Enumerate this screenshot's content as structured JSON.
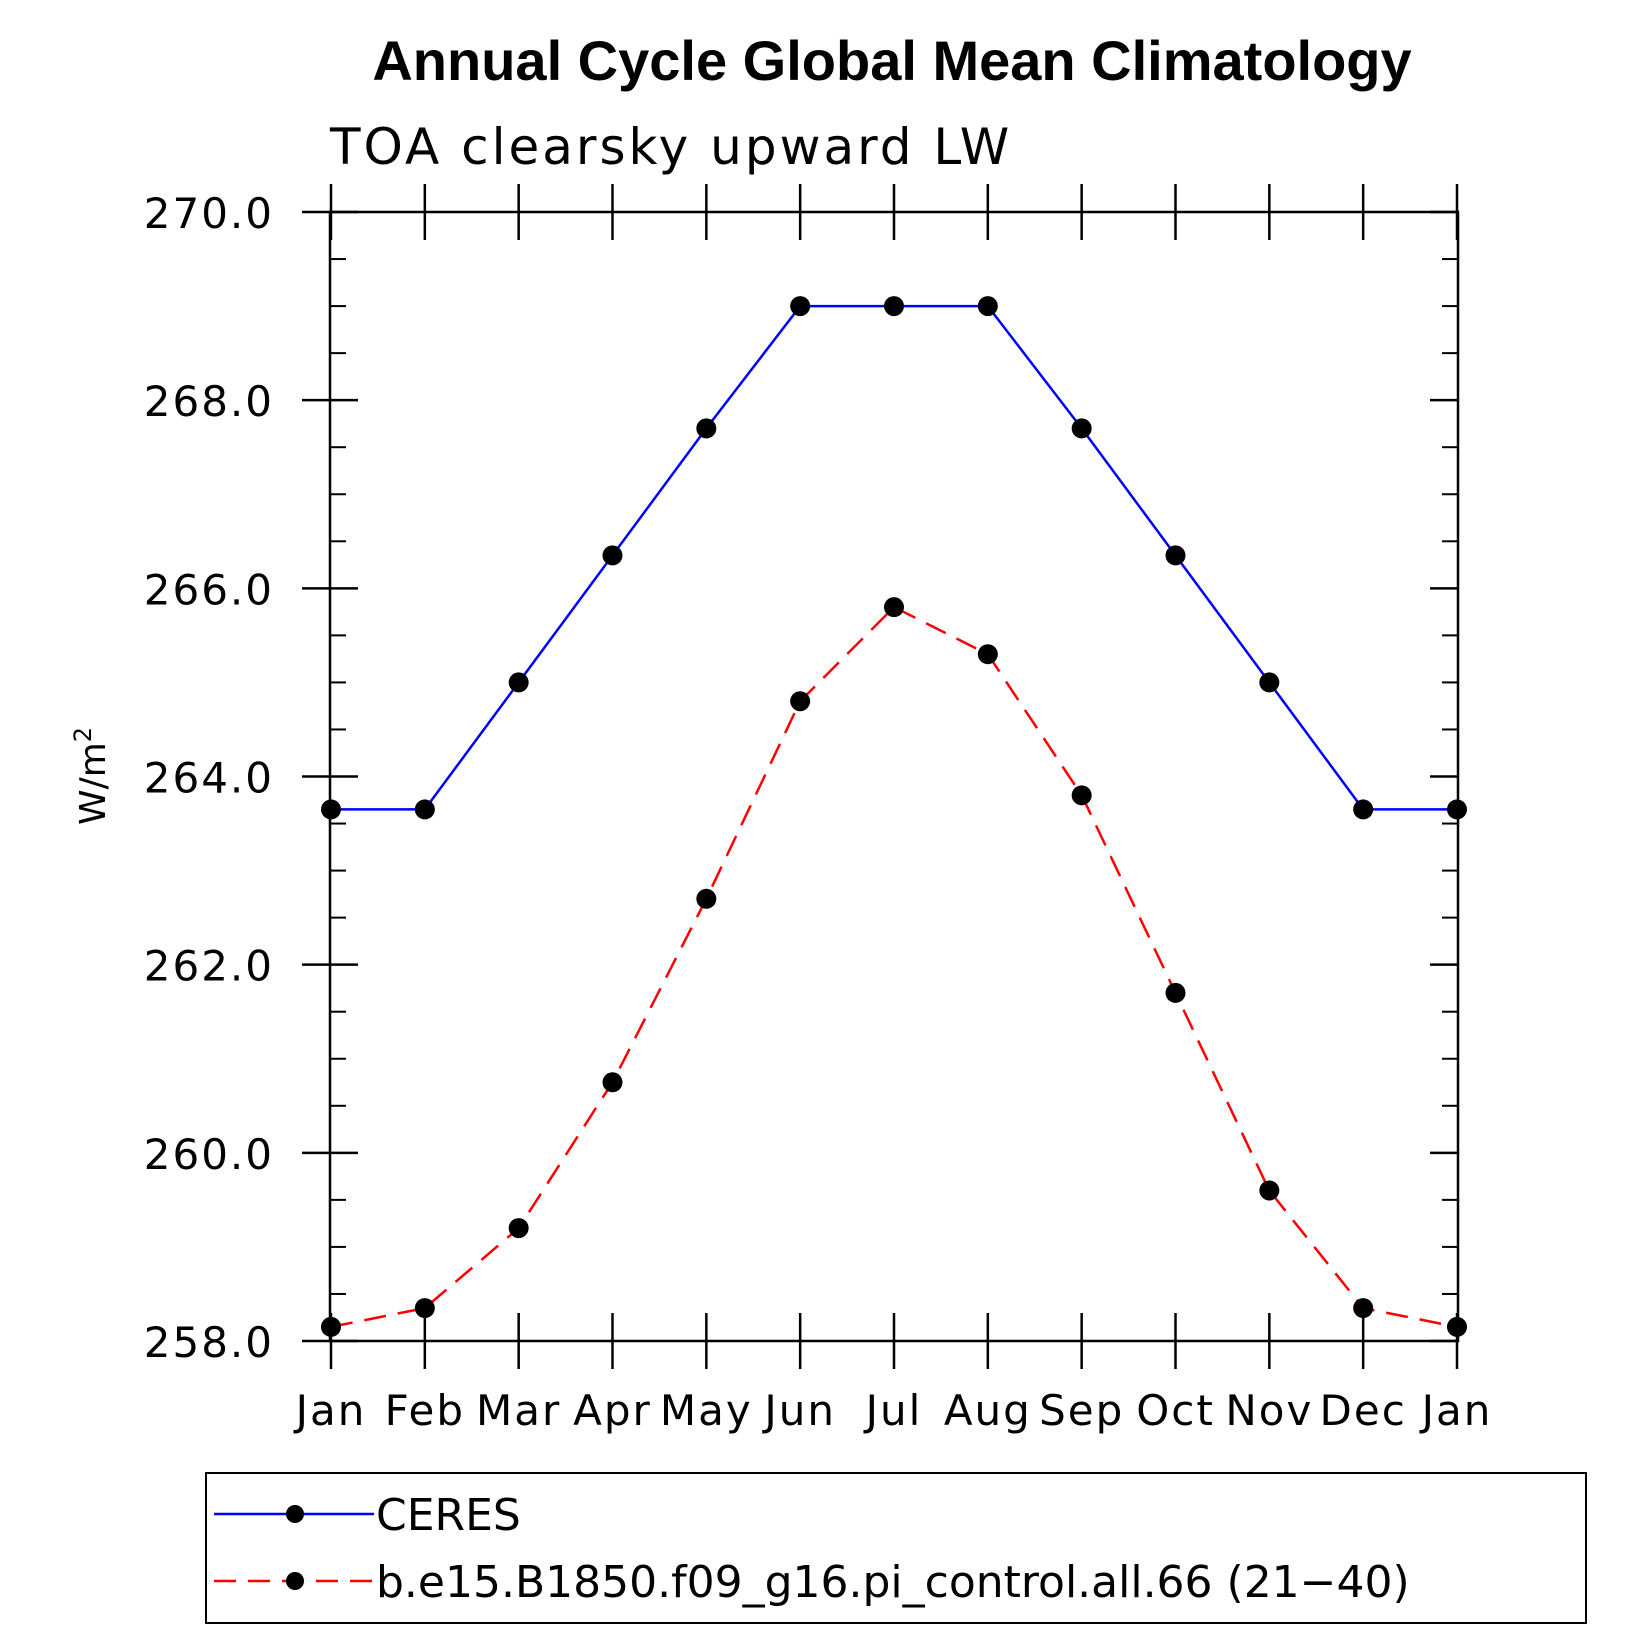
{
  "chart_data": {
    "type": "line",
    "title": "Annual Cycle Global Mean Climatology",
    "subtitle": "TOA clearsky upward LW",
    "ylabel": "W/m",
    "ylabel_superscript": "2",
    "categories": [
      "Jan",
      "Feb",
      "Mar",
      "Apr",
      "May",
      "Jun",
      "Jul",
      "Aug",
      "Sep",
      "Oct",
      "Nov",
      "Dec",
      "Jan"
    ],
    "ylim": [
      258.0,
      270.0
    ],
    "yticks": [
      "258.0",
      "260.0",
      "262.0",
      "264.0",
      "266.0",
      "268.0",
      "270.0"
    ],
    "legend_position": "bottom",
    "series": [
      {
        "name": "CERES",
        "color": "#0000ff",
        "dash": "solid",
        "marker": "filled-circle",
        "values": [
          263.65,
          263.65,
          265.0,
          266.35,
          267.7,
          269.0,
          269.0,
          269.0,
          267.7,
          266.35,
          265.0,
          263.65,
          263.65
        ]
      },
      {
        "name": "b.e15.B1850.f09_g16.pi_control.all.66 (21−40)",
        "color": "#ff0000",
        "dash": "dashed",
        "marker": "filled-circle",
        "values": [
          258.15,
          258.35,
          259.2,
          260.75,
          262.7,
          264.8,
          265.8,
          265.3,
          263.8,
          261.7,
          259.6,
          258.35,
          258.15
        ]
      }
    ]
  }
}
